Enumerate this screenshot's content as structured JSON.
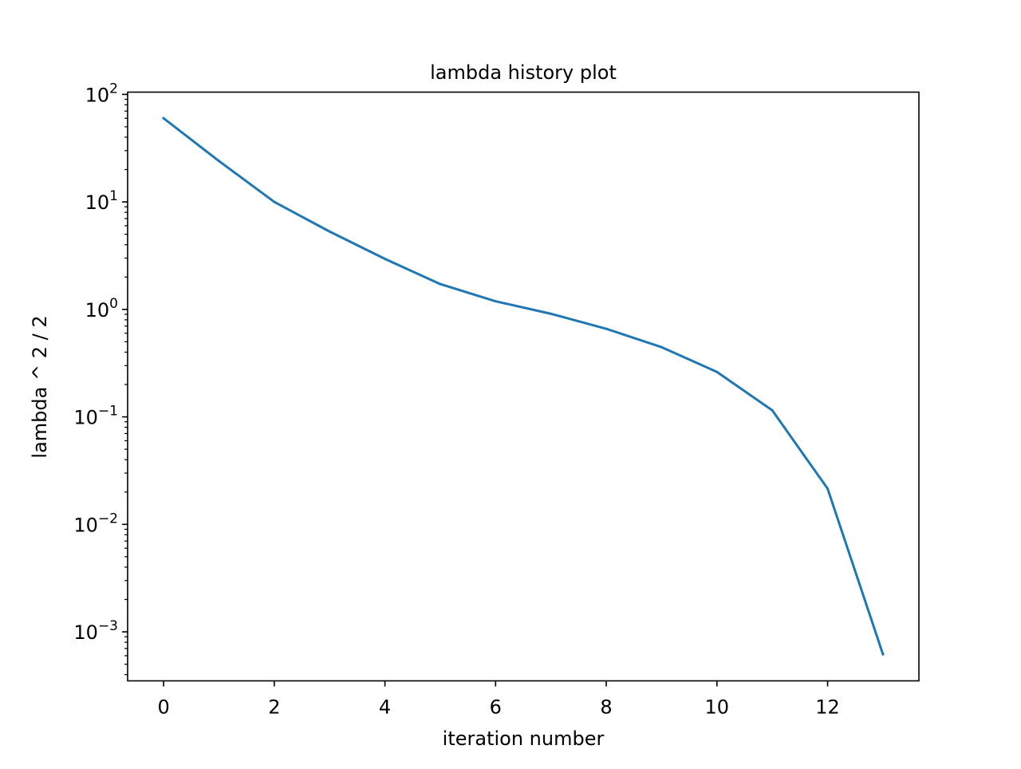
{
  "chart_data": {
    "type": "line",
    "title": "lambda history plot",
    "xlabel": "iteration number",
    "ylabel": "lambda ^ 2 / 2",
    "yscale": "log",
    "xlim": [
      -0.65,
      13.65
    ],
    "ylim": [
      0.00035,
      105
    ],
    "grid": false,
    "legend": null,
    "x_ticks": [
      0,
      2,
      4,
      6,
      8,
      10,
      12
    ],
    "x_tick_labels": [
      "0",
      "2",
      "4",
      "6",
      "8",
      "10",
      "12"
    ],
    "y_ticks": [
      {
        "value": 100,
        "base": "10",
        "exp": "2"
      },
      {
        "value": 10,
        "base": "10",
        "exp": "1"
      },
      {
        "value": 1,
        "base": "10",
        "exp": "0"
      },
      {
        "value": 0.1,
        "base": "10",
        "exp": "−1"
      },
      {
        "value": 0.01,
        "base": "10",
        "exp": "−2"
      },
      {
        "value": 0.001,
        "base": "10",
        "exp": "−3"
      }
    ],
    "series": [
      {
        "name": "lambda^2/2",
        "color": "#1f77b4",
        "x": [
          0,
          1,
          2,
          3,
          4,
          5,
          6,
          7,
          8,
          9,
          10,
          11,
          12,
          13
        ],
        "values": [
          60,
          24,
          10,
          5.3,
          2.95,
          1.72,
          1.19,
          0.91,
          0.66,
          0.445,
          0.262,
          0.115,
          0.0215,
          0.00062
        ]
      }
    ]
  }
}
